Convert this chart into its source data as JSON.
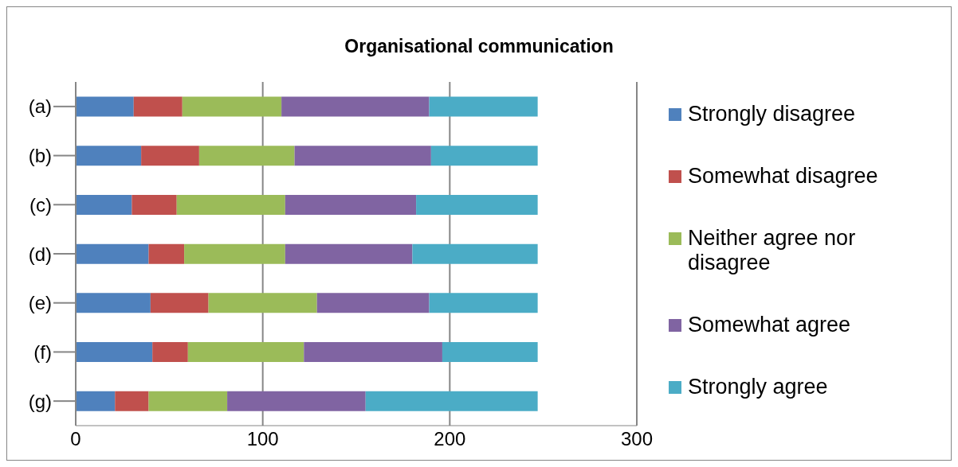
{
  "chart_data": {
    "type": "bar",
    "title": "Organisational communication",
    "orientation": "horizontal",
    "stacked": true,
    "categories": [
      "(a)",
      "(b)",
      "(c)",
      "(d)",
      "(e)",
      "(f)",
      "(g)"
    ],
    "series": [
      {
        "name": "Strongly disagree",
        "color": "#4f81bd",
        "values": [
          31,
          35,
          30,
          39,
          40,
          41,
          21
        ]
      },
      {
        "name": "Somewhat disagree",
        "color": "#c0504d",
        "values": [
          26,
          31,
          24,
          19,
          31,
          19,
          18
        ]
      },
      {
        "name": "Neither agree nor disagree",
        "color": "#9bbb59",
        "values": [
          53,
          51,
          58,
          54,
          58,
          62,
          42
        ]
      },
      {
        "name": "Somewhat agree",
        "color": "#8064a2",
        "values": [
          79,
          73,
          70,
          68,
          60,
          74,
          74
        ]
      },
      {
        "name": "Strongly agree",
        "color": "#4bacc6",
        "values": [
          58,
          57,
          65,
          67,
          58,
          51,
          92
        ]
      }
    ],
    "xlim": [
      0,
      300
    ],
    "xticks": [
      0,
      100,
      200,
      300
    ],
    "grid": "x",
    "legend": "right"
  }
}
